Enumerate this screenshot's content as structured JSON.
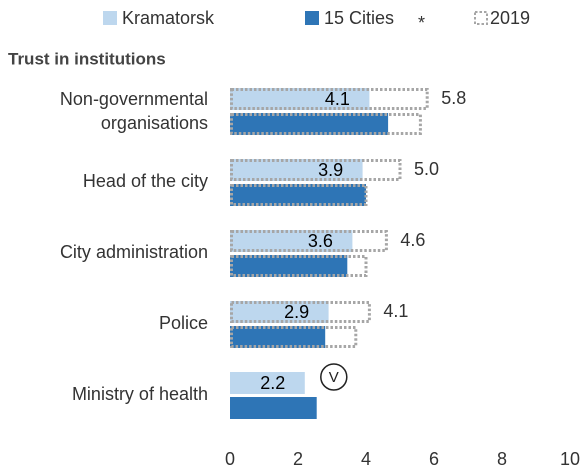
{
  "chart_data": {
    "type": "bar",
    "orientation": "horizontal",
    "subtitle": "Trust in institutions",
    "categories": [
      "Non-governmental organisations",
      "Head of the city",
      "City administration",
      "Police",
      "Ministry of health"
    ],
    "series": [
      {
        "name": "Kramatorsk",
        "color": "#bdd7ee",
        "values": [
          4.1,
          3.9,
          3.6,
          2.9,
          2.2
        ],
        "values_2019": [
          5.8,
          5.0,
          4.6,
          4.1,
          null
        ],
        "value_labels_2019": [
          "5.8",
          "5.0",
          "4.6",
          "4.1",
          null
        ]
      },
      {
        "name": "15 Cities",
        "color": "#2e75b6",
        "values": [
          4.65,
          4.0,
          3.45,
          2.8,
          2.55
        ],
        "values_2019": [
          5.6,
          4.0,
          4.0,
          3.7,
          null
        ]
      }
    ],
    "legend_note": "*",
    "comparison": {
      "name": "2019",
      "color": "#a6a6a6"
    },
    "annotation": "V",
    "xlim": [
      0,
      10
    ],
    "xticks": [
      0,
      2,
      4,
      6,
      8,
      10
    ],
    "grid": false,
    "legend": "top"
  }
}
